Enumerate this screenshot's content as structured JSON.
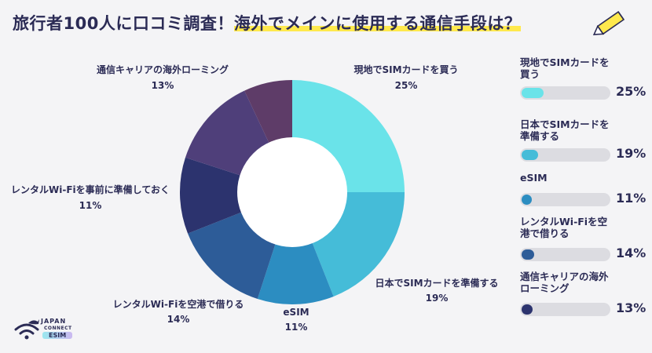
{
  "title": {
    "part1": "旅行者100人に口コミ調査！",
    "part2": "海外でメインに使用する通信手段は？"
  },
  "logo": {
    "line1": "JAPAN",
    "line2": "CONNECT",
    "line3": "ESIM"
  },
  "chart_data": {
    "type": "pie",
    "donut": true,
    "categories": [
      "現地でSIMカードを買う",
      "日本でSIMカードを準備する",
      "eSIM",
      "レンタルWi-Fiを空港で借りる",
      "レンタルWi-Fiを事前に準備しておく",
      "通信キャリアの海外ローミング"
    ],
    "values": [
      25,
      19,
      11,
      14,
      11,
      13
    ],
    "value_labels": [
      "25%",
      "19%",
      "11%",
      "14%",
      "11%",
      "13%"
    ],
    "colors": [
      "#6ae3e9",
      "#45bcd8",
      "#2c8dc1",
      "#2d5c98",
      "#2c336e",
      "#4f3f7a"
    ],
    "extra_slice": {
      "color": "#5e3c68"
    }
  },
  "side": {
    "items": [
      {
        "name": "現地でSIMカードを買う",
        "pct": "25%",
        "value": 25,
        "color": "#6ae3e9"
      },
      {
        "name": "日本でSIMカードを準備する",
        "pct": "19%",
        "value": 19,
        "color": "#45bcd8"
      },
      {
        "name": "eSIM",
        "pct": "11%",
        "value": 11,
        "color": "#2c8dc1"
      },
      {
        "name": "レンタルWi-Fiを空港で借りる",
        "pct": "14%",
        "value": 14,
        "color": "#2d5c98"
      },
      {
        "name": "通信キャリアの海外ローミング",
        "pct": "13%",
        "value": 13,
        "color": "#2c336e"
      }
    ]
  }
}
